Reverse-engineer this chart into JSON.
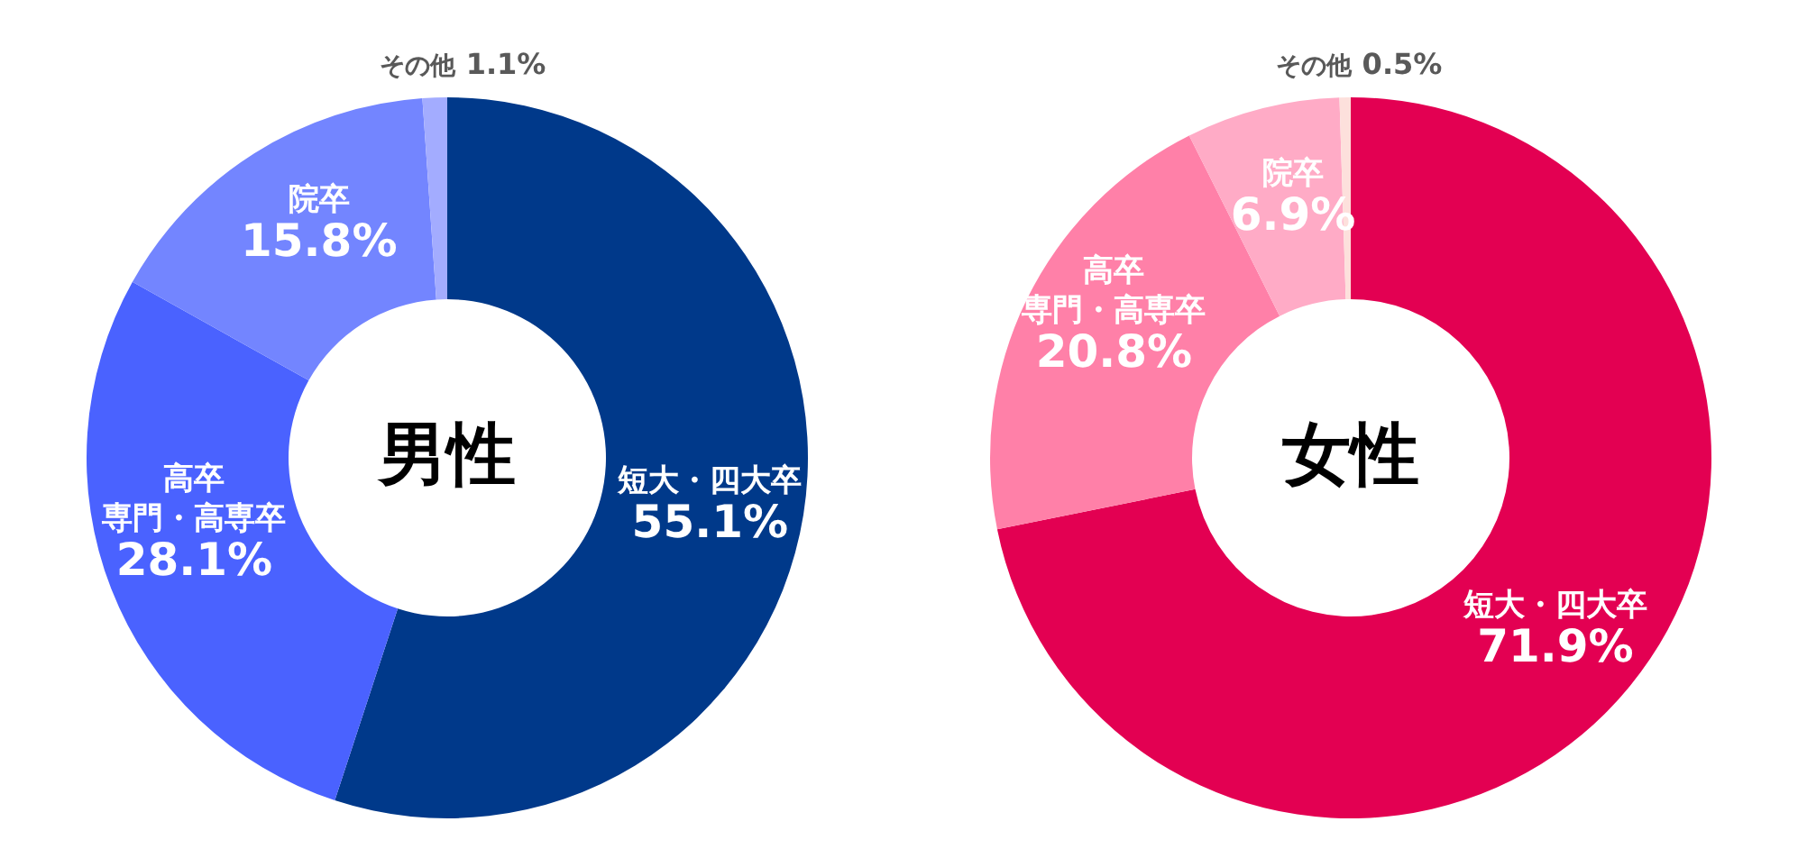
{
  "chart_data": [
    {
      "type": "donut",
      "title": "男性",
      "categories": [
        "短大・四大卒",
        "高卒専門・高専卒",
        "院卒",
        "その他"
      ],
      "values": [
        55.1,
        28.1,
        15.8,
        1.1
      ],
      "value_labels": [
        "55.1%",
        "28.1%",
        "15.8%",
        "1.1%"
      ],
      "colors": [
        "#00398a",
        "#4a62ff",
        "#7385ff",
        "#a3acff"
      ]
    },
    {
      "type": "donut",
      "title": "女性",
      "categories": [
        "短大・四大卒",
        "高卒専門・高専卒",
        "院卒",
        "その他"
      ],
      "values": [
        71.9,
        20.8,
        6.9,
        0.5
      ],
      "value_labels": [
        "71.9%",
        "20.8%",
        "6.9%",
        "0.5%"
      ],
      "colors": [
        "#e30052",
        "#ff80a8",
        "#ffabc6",
        "#fde0dc"
      ]
    }
  ]
}
